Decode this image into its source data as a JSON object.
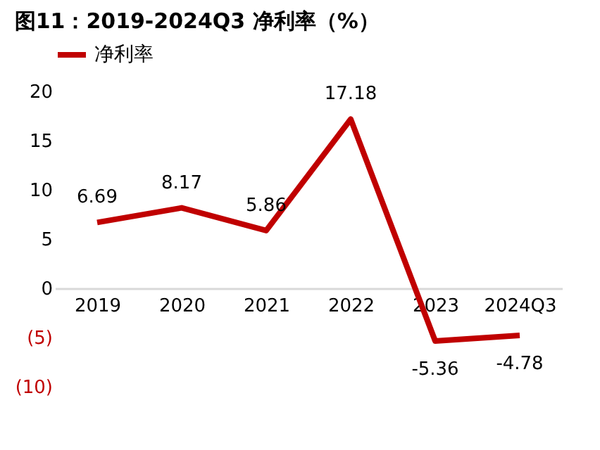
{
  "chart_data": {
    "type": "line",
    "title": "图11：2019-2024Q3 净利率（%）",
    "categories": [
      "2019",
      "2020",
      "2021",
      "2022",
      "2023",
      "2024Q3"
    ],
    "series": [
      {
        "name": "净利率",
        "color": "#c00000",
        "values": [
          6.69,
          8.17,
          5.86,
          17.18,
          -5.36,
          -4.78
        ]
      }
    ],
    "ylim": [
      -10,
      20
    ],
    "yticks": [
      {
        "value": -10,
        "label": "(10)"
      },
      {
        "value": -5,
        "label": "(5)"
      },
      0,
      5,
      10,
      15,
      20
    ],
    "data_labels": true,
    "grid": false,
    "legend": "top",
    "marker": "none",
    "line_style": "solid"
  }
}
